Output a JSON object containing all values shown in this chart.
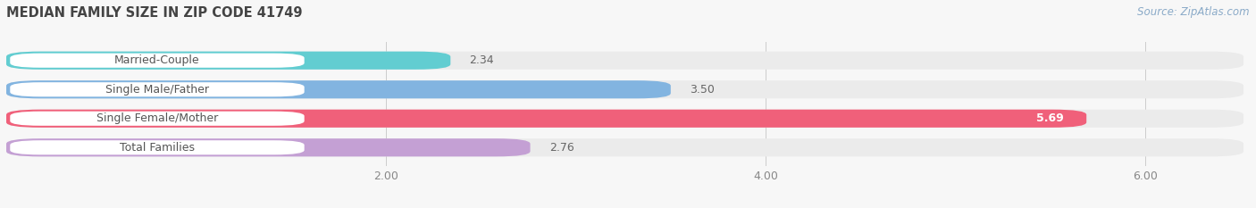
{
  "title": "MEDIAN FAMILY SIZE IN ZIP CODE 41749",
  "source": "Source: ZipAtlas.com",
  "categories": [
    "Married-Couple",
    "Single Male/Father",
    "Single Female/Mother",
    "Total Families"
  ],
  "values": [
    2.34,
    3.5,
    5.69,
    2.76
  ],
  "bar_colors": [
    "#62cdd1",
    "#82b4e0",
    "#f0607a",
    "#c4a0d4"
  ],
  "background_color": "#f7f7f7",
  "bar_bg_color": "#ebebeb",
  "label_bg_color": "#ffffff",
  "xlim_max": 6.55,
  "xticks": [
    2.0,
    4.0,
    6.0
  ],
  "label_fontsize": 9.0,
  "value_fontsize": 9.0,
  "title_fontsize": 10.5,
  "source_fontsize": 8.5,
  "bar_height": 0.62,
  "label_text_color": "#555555",
  "value_color_dark": "#666666",
  "value_color_light": "#ffffff"
}
